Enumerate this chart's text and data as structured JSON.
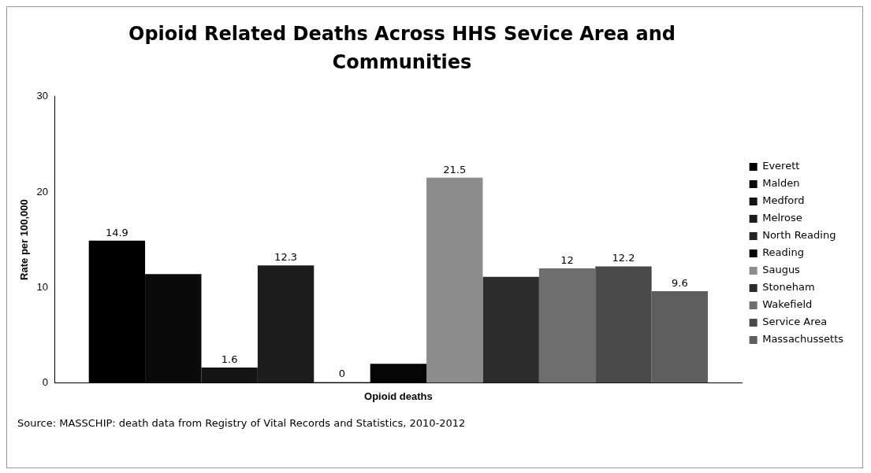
{
  "chart_data": {
    "type": "bar",
    "title": "Opioid Related Deaths Across  HHS Sevice Area and Communities",
    "ylabel": "Rate per 100,000",
    "categories": [
      "Opioid deaths"
    ],
    "ylim": [
      0,
      30
    ],
    "yticks": [
      0,
      10,
      20,
      30
    ],
    "grid": false,
    "legend": "right",
    "annotations": [
      "Source: MASSCHIP: death data from Registry of Vital Records and Statistics, 2010-2012"
    ],
    "series": [
      {
        "name": "Everett",
        "color": "#000000",
        "values": [
          14.9
        ],
        "value_labels": [
          "14.9"
        ]
      },
      {
        "name": "Malden",
        "color": "#0a0a0a",
        "values": [
          11.4
        ],
        "value_labels": [
          null
        ]
      },
      {
        "name": "Medford",
        "color": "#141414",
        "values": [
          1.6
        ],
        "value_labels": [
          "1.6"
        ]
      },
      {
        "name": "Melrose",
        "color": "#1c1c1c",
        "values": [
          12.3
        ],
        "value_labels": [
          "12.3"
        ]
      },
      {
        "name": "North Reading",
        "color": "#242424",
        "values": [
          0
        ],
        "value_labels": [
          "0"
        ]
      },
      {
        "name": "Reading",
        "color": "#050505",
        "values": [
          2.0
        ],
        "value_labels": [
          null
        ]
      },
      {
        "name": "Saugus",
        "color": "#8c8c8c",
        "values": [
          21.5
        ],
        "value_labels": [
          "21.5"
        ]
      },
      {
        "name": "Stoneham",
        "color": "#2c2c2c",
        "values": [
          11.1
        ],
        "value_labels": [
          null
        ]
      },
      {
        "name": "Wakefield",
        "color": "#6e6e6e",
        "values": [
          12
        ],
        "value_labels": [
          "12"
        ]
      },
      {
        "name": "Service Area",
        "color": "#4a4a4a",
        "values": [
          12.2
        ],
        "value_labels": [
          "12.2"
        ]
      },
      {
        "name": "Massachussetts",
        "color": "#5e5e5e",
        "values": [
          9.6
        ],
        "value_labels": [
          "9.6"
        ]
      }
    ]
  }
}
